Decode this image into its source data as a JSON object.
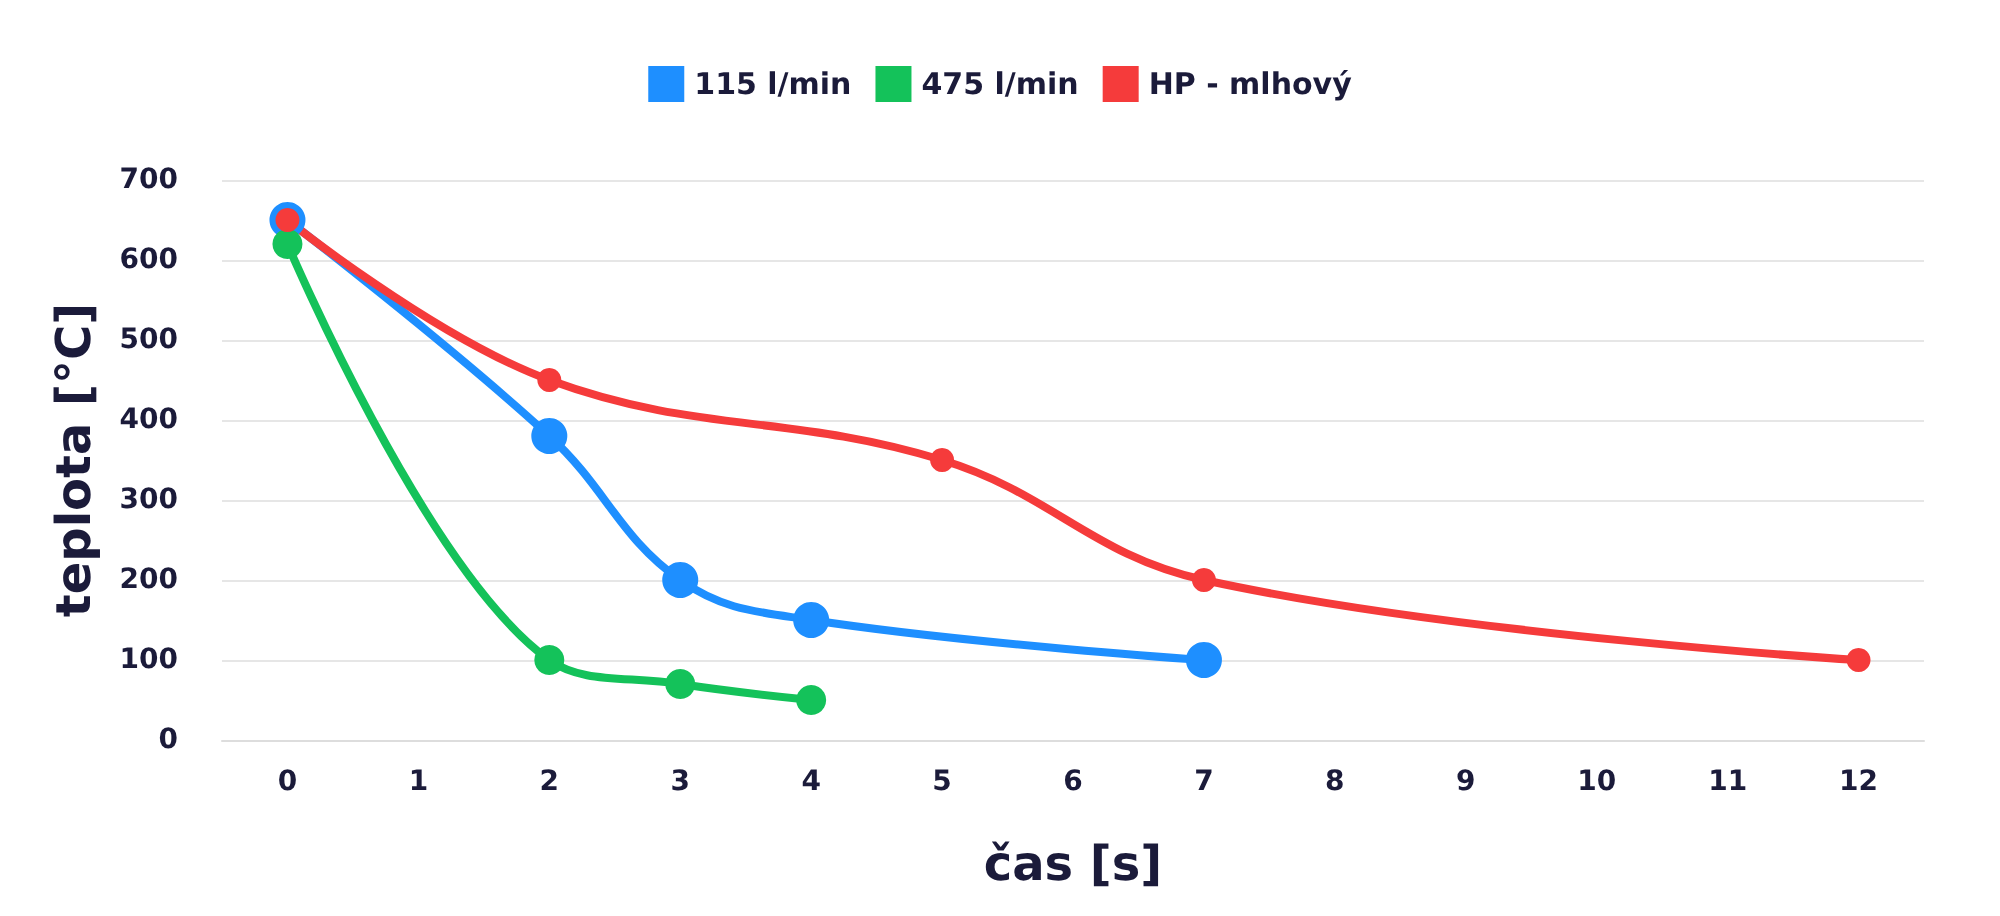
{
  "chart_data": {
    "type": "line",
    "xlabel": "čas [s]",
    "ylabel": "teplota [°C]",
    "xlim": [
      -0.5,
      12.5
    ],
    "xticks": [
      0,
      1,
      2,
      3,
      4,
      5,
      6,
      7,
      8,
      9,
      10,
      11,
      12
    ],
    "ylim": [
      0,
      700
    ],
    "yticks": [
      0,
      100,
      200,
      300,
      400,
      500,
      600,
      700
    ],
    "grid": "y",
    "legend": "top",
    "marker": "circle",
    "line_style": "solid",
    "series": [
      {
        "name": "115 l/min",
        "color": "#1e8fff",
        "x": [
          0,
          2,
          3,
          4,
          7
        ],
        "values": [
          650,
          380,
          200,
          150,
          100
        ]
      },
      {
        "name": "475 l/min",
        "color": "#14c25a",
        "x": [
          0,
          2,
          3,
          4
        ],
        "values": [
          620,
          100,
          70,
          50
        ]
      },
      {
        "name": "HP - mlhový",
        "color": "#f53b3b",
        "x": [
          0,
          2,
          5,
          7,
          12
        ],
        "values": [
          650,
          450,
          350,
          200,
          100
        ]
      }
    ]
  }
}
